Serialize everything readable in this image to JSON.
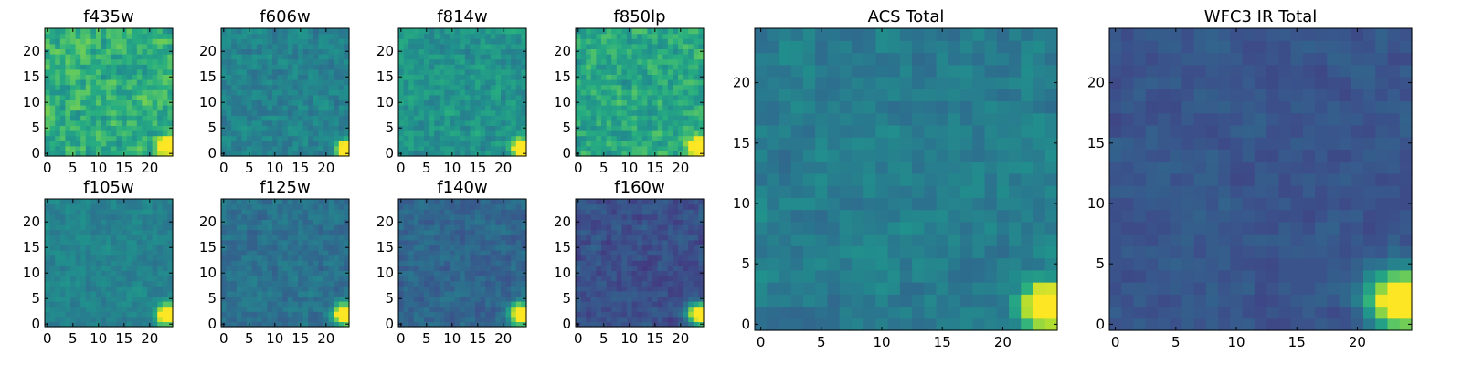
{
  "figure": {
    "type": "heatmap-grid",
    "colormap": "viridis"
  },
  "chart_data": [
    {
      "type": "heatmap",
      "title": "f435w",
      "grid": [
        25,
        25
      ],
      "xlim": [
        -0.5,
        24.5
      ],
      "ylim": [
        -0.5,
        24.5
      ],
      "xticks": [
        "0",
        "5",
        "10",
        "15",
        "20"
      ],
      "yticks": [
        "0",
        "5",
        "10",
        "15",
        "20"
      ],
      "background_level": 0.63,
      "noise": 0.2,
      "seed": 11,
      "source": {
        "x": 23.5,
        "y": 1.5,
        "peak": 1.0,
        "sigma": 1.2
      }
    },
    {
      "type": "heatmap",
      "title": "f606w",
      "grid": [
        25,
        25
      ],
      "xlim": [
        -0.5,
        24.5
      ],
      "ylim": [
        -0.5,
        24.5
      ],
      "xticks": [
        "0",
        "5",
        "10",
        "15",
        "20"
      ],
      "yticks": [
        "0",
        "5",
        "10",
        "15",
        "20"
      ],
      "background_level": 0.45,
      "noise": 0.12,
      "seed": 23,
      "source": {
        "x": 23.5,
        "y": 1.0,
        "peak": 1.0,
        "sigma": 1.0
      }
    },
    {
      "type": "heatmap",
      "title": "f814w",
      "grid": [
        25,
        25
      ],
      "xlim": [
        -0.5,
        24.5
      ],
      "ylim": [
        -0.5,
        24.5
      ],
      "xticks": [
        "0",
        "5",
        "10",
        "15",
        "20"
      ],
      "yticks": [
        "0",
        "5",
        "10",
        "15",
        "20"
      ],
      "background_level": 0.52,
      "noise": 0.14,
      "seed": 37,
      "source": {
        "x": 23.5,
        "y": 1.0,
        "peak": 1.0,
        "sigma": 1.1
      }
    },
    {
      "type": "heatmap",
      "title": "f850lp",
      "grid": [
        25,
        25
      ],
      "xlim": [
        -0.5,
        24.5
      ],
      "ylim": [
        -0.5,
        24.5
      ],
      "xticks": [
        "0",
        "5",
        "10",
        "15",
        "20"
      ],
      "yticks": [
        "0",
        "5",
        "10",
        "15",
        "20"
      ],
      "background_level": 0.6,
      "noise": 0.18,
      "seed": 41,
      "source": {
        "x": 23.5,
        "y": 1.5,
        "peak": 1.0,
        "sigma": 1.2
      }
    },
    {
      "type": "heatmap",
      "title": "f105w",
      "grid": [
        25,
        25
      ],
      "xlim": [
        -0.5,
        24.5
      ],
      "ylim": [
        -0.5,
        24.5
      ],
      "xticks": [
        "0",
        "5",
        "10",
        "15",
        "20"
      ],
      "yticks": [
        "0",
        "5",
        "10",
        "15",
        "20"
      ],
      "background_level": 0.45,
      "noise": 0.09,
      "seed": 53,
      "source": {
        "x": 23.5,
        "y": 2.0,
        "peak": 1.0,
        "sigma": 1.4
      }
    },
    {
      "type": "heatmap",
      "title": "f125w",
      "grid": [
        25,
        25
      ],
      "xlim": [
        -0.5,
        24.5
      ],
      "ylim": [
        -0.5,
        24.5
      ],
      "xticks": [
        "0",
        "5",
        "10",
        "15",
        "20"
      ],
      "yticks": [
        "0",
        "5",
        "10",
        "15",
        "20"
      ],
      "background_level": 0.38,
      "noise": 0.1,
      "seed": 67,
      "source": {
        "x": 23.5,
        "y": 2.0,
        "peak": 1.0,
        "sigma": 1.4
      }
    },
    {
      "type": "heatmap",
      "title": "f140w",
      "grid": [
        25,
        25
      ],
      "xlim": [
        -0.5,
        24.5
      ],
      "ylim": [
        -0.5,
        24.5
      ],
      "xticks": [
        "0",
        "5",
        "10",
        "15",
        "20"
      ],
      "yticks": [
        "0",
        "5",
        "10",
        "15",
        "20"
      ],
      "background_level": 0.33,
      "noise": 0.1,
      "seed": 71,
      "source": {
        "x": 23.5,
        "y": 2.0,
        "peak": 1.0,
        "sigma": 1.5
      }
    },
    {
      "type": "heatmap",
      "title": "f160w",
      "grid": [
        25,
        25
      ],
      "xlim": [
        -0.5,
        24.5
      ],
      "ylim": [
        -0.5,
        24.5
      ],
      "xticks": [
        "0",
        "5",
        "10",
        "15",
        "20"
      ],
      "yticks": [
        "0",
        "5",
        "10",
        "15",
        "20"
      ],
      "background_level": 0.25,
      "noise": 0.1,
      "seed": 83,
      "source": {
        "x": 23.5,
        "y": 2.0,
        "peak": 1.0,
        "sigma": 1.5
      }
    },
    {
      "type": "heatmap",
      "title": "ACS Total",
      "grid": [
        25,
        25
      ],
      "xlim": [
        -0.5,
        24.5
      ],
      "ylim": [
        -0.5,
        24.5
      ],
      "xticks": [
        "0",
        "5",
        "10",
        "15",
        "20"
      ],
      "yticks": [
        "0",
        "5",
        "10",
        "15",
        "20"
      ],
      "background_level": 0.42,
      "noise": 0.1,
      "seed": 97,
      "source": {
        "x": 23.5,
        "y": 1.5,
        "peak": 1.0,
        "sigma": 1.3
      }
    },
    {
      "type": "heatmap",
      "title": "WFC3 IR Total",
      "grid": [
        25,
        25
      ],
      "xlim": [
        -0.5,
        24.5
      ],
      "ylim": [
        -0.5,
        24.5
      ],
      "xticks": [
        "0",
        "5",
        "10",
        "15",
        "20"
      ],
      "yticks": [
        "0",
        "5",
        "10",
        "15",
        "20"
      ],
      "background_level": 0.27,
      "noise": 0.07,
      "seed": 101,
      "source": {
        "x": 23.5,
        "y": 2.0,
        "peak": 1.0,
        "sigma": 1.7
      }
    }
  ]
}
